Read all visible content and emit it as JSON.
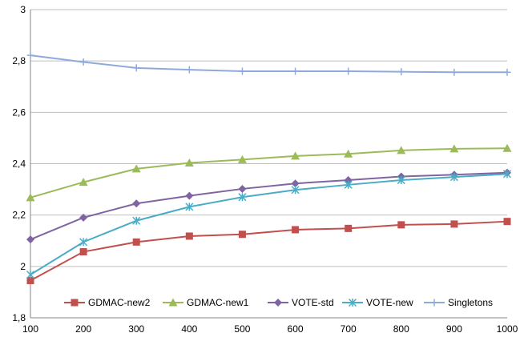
{
  "chart_data": {
    "type": "line",
    "x": [
      100,
      200,
      300,
      400,
      500,
      600,
      700,
      800,
      900,
      1000
    ],
    "xlim": [
      100,
      1000
    ],
    "ylim": [
      1.8,
      3.0
    ],
    "yticks": [
      "1,8",
      "2",
      "2,2",
      "2,4",
      "2,6",
      "2,8",
      "3"
    ],
    "ytick_values": [
      1.8,
      2.0,
      2.2,
      2.4,
      2.6,
      2.8,
      3.0
    ],
    "xticks": [
      "100",
      "200",
      "300",
      "400",
      "500",
      "600",
      "700",
      "800",
      "900",
      "1000"
    ],
    "grid": true,
    "legend_position": "bottom-inside",
    "series": [
      {
        "name": "GDMAC-new2",
        "color": "#c0504d",
        "marker": "square",
        "values": [
          1.945,
          2.057,
          2.095,
          2.118,
          2.125,
          2.143,
          2.148,
          2.162,
          2.165,
          2.175
        ]
      },
      {
        "name": "GDMAC-new1",
        "color": "#9bbb59",
        "marker": "triangle",
        "values": [
          2.268,
          2.328,
          2.38,
          2.403,
          2.416,
          2.43,
          2.438,
          2.452,
          2.458,
          2.46
        ]
      },
      {
        "name": "VOTE-std",
        "color": "#8064a2",
        "marker": "diamond",
        "values": [
          2.105,
          2.19,
          2.245,
          2.275,
          2.302,
          2.323,
          2.336,
          2.35,
          2.357,
          2.365
        ]
      },
      {
        "name": "VOTE-new",
        "color": "#4bacc6",
        "marker": "asterisk",
        "values": [
          1.968,
          2.095,
          2.178,
          2.232,
          2.27,
          2.298,
          2.318,
          2.336,
          2.348,
          2.36
        ]
      },
      {
        "name": "Singletons",
        "color": "#8eaadb",
        "marker": "plus",
        "values": [
          2.822,
          2.796,
          2.773,
          2.766,
          2.76,
          2.76,
          2.76,
          2.758,
          2.756,
          2.756
        ]
      }
    ]
  }
}
